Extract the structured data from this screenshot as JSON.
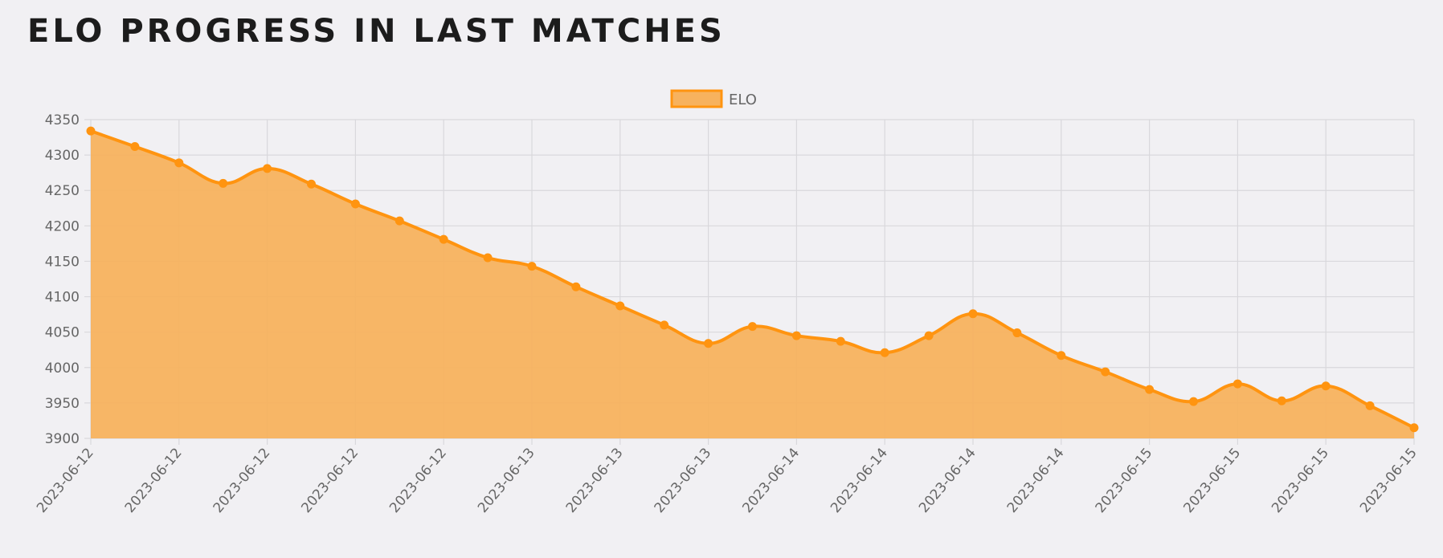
{
  "page": {
    "title": "ELO PROGRESS IN LAST MATCHES"
  },
  "colors": {
    "line": "#ff9410",
    "fill": "#f7b25e",
    "grid": "#d9d8dc",
    "text": "#666666",
    "background": "#f1f0f3"
  },
  "chart_data": {
    "type": "area",
    "title": "",
    "xlabel": "",
    "ylabel": "",
    "ylim": [
      3900,
      4350
    ],
    "y_ticks": [
      3900,
      3950,
      4000,
      4050,
      4100,
      4150,
      4200,
      4250,
      4300,
      4350
    ],
    "x_tick_labels": [
      "2023-06-12",
      "2023-06-12",
      "2023-06-12",
      "2023-06-12",
      "2023-06-12",
      "2023-06-13",
      "2023-06-13",
      "2023-06-13",
      "2023-06-14",
      "2023-06-14",
      "2023-06-14",
      "2023-06-14",
      "2023-06-15",
      "2023-06-15",
      "2023-06-15",
      "2023-06-15"
    ],
    "grid": true,
    "legend": "top-center",
    "series": [
      {
        "name": "ELO",
        "values": [
          4334,
          4312,
          4289,
          4260,
          4281,
          4259,
          4231,
          4207,
          4181,
          4155,
          4143,
          4114,
          4087,
          4060,
          4034,
          4058,
          4045,
          4037,
          4021,
          4045,
          4076,
          4049,
          4017,
          3994,
          3969,
          3952,
          3977,
          3953,
          3974,
          3946,
          3915
        ]
      }
    ]
  }
}
